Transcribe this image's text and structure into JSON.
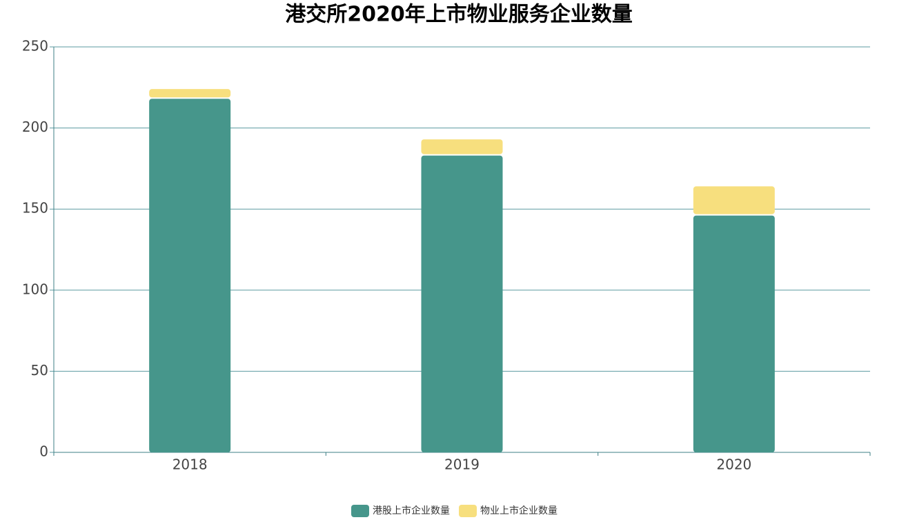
{
  "chart_data": {
    "type": "bar",
    "stacked": true,
    "title": "港交所2020年上市物业服务企业数量",
    "categories": [
      "2018",
      "2019",
      "2020"
    ],
    "series": [
      {
        "name": "港股上市企业数量",
        "color": "#46968b",
        "values": [
          218,
          183,
          146
        ]
      },
      {
        "name": "物业上市企业数量",
        "color": "#f7df7e",
        "values": [
          6,
          10,
          18
        ]
      }
    ],
    "ylim": [
      0,
      250
    ],
    "yticks": [
      0,
      50,
      100,
      150,
      200,
      250
    ],
    "grid": true,
    "legend": "bottom"
  }
}
